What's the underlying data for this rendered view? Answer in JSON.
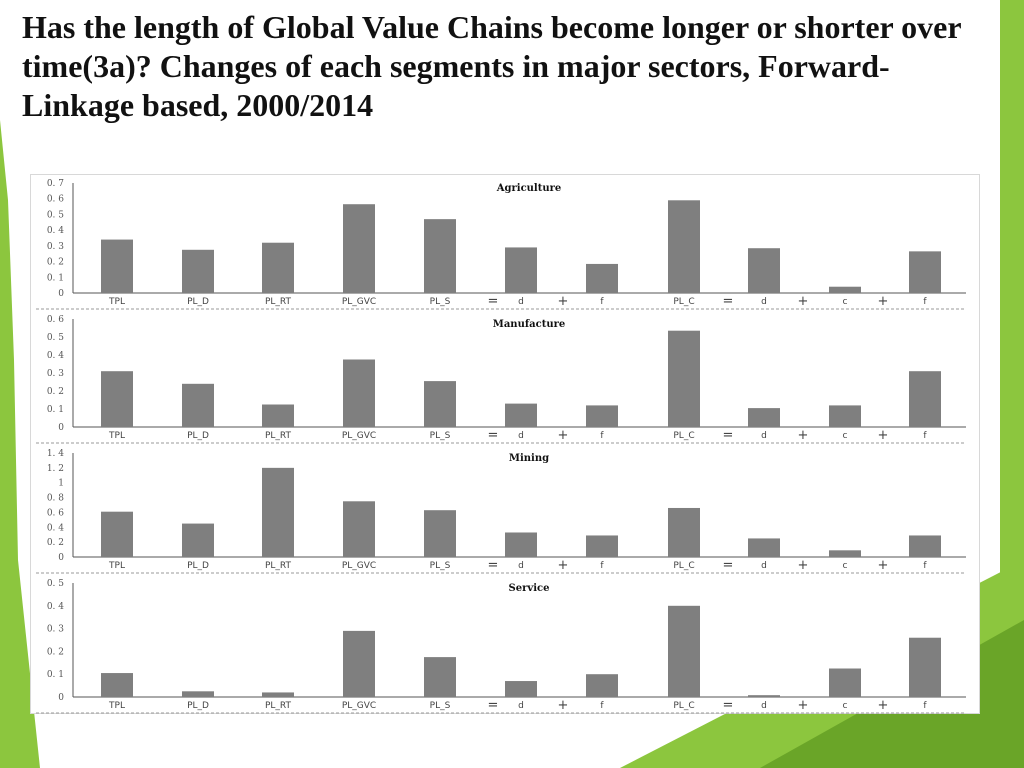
{
  "slide": {
    "title": "Has the length of Global Value Chains become longer or shorter over time(3a)? Changes of  each segments in major sectors, Forward-Linkage based, 2000/2014"
  },
  "colors": {
    "bar": "#7f7f7f",
    "accent_green": "#8cc63e",
    "accent_green_dark": "#6aa528"
  },
  "chart_data": [
    {
      "type": "bar",
      "title": "Agriculture",
      "categories": [
        "TPL",
        "PL_D",
        "PL_RT",
        "PL_GVC",
        "PL_S",
        "d",
        "f",
        "PL_C",
        "d",
        "c",
        "f"
      ],
      "operators": [
        "=",
        "+",
        "=",
        "+",
        "+"
      ],
      "values": [
        0.34,
        0.275,
        0.32,
        0.565,
        0.47,
        0.29,
        0.185,
        0.59,
        0.285,
        0.04,
        0.265
      ],
      "ylim": [
        0,
        0.7
      ],
      "yticks": [
        "0",
        "0. 1",
        "0. 2",
        "0. 3",
        "0. 4",
        "0. 5",
        "0. 6",
        "0. 7"
      ],
      "xlabel": "",
      "ylabel": ""
    },
    {
      "type": "bar",
      "title": "Manufacture",
      "categories": [
        "TPL",
        "PL_D",
        "PL_RT",
        "PL_GVC",
        "PL_S",
        "d",
        "f",
        "PL_C",
        "d",
        "c",
        "f"
      ],
      "operators": [
        "=",
        "+",
        "=",
        "+",
        "+"
      ],
      "values": [
        0.31,
        0.24,
        0.125,
        0.375,
        0.255,
        0.13,
        0.12,
        0.535,
        0.105,
        0.12,
        0.31
      ],
      "ylim": [
        0,
        0.6
      ],
      "yticks": [
        "0",
        "0. 1",
        "0. 2",
        "0. 3",
        "0. 4",
        "0. 5",
        "0. 6"
      ],
      "xlabel": "",
      "ylabel": ""
    },
    {
      "type": "bar",
      "title": "Mining",
      "categories": [
        "TPL",
        "PL_D",
        "PL_RT",
        "PL_GVC",
        "PL_S",
        "d",
        "f",
        "PL_C",
        "d",
        "c",
        "f"
      ],
      "operators": [
        "=",
        "+",
        "=",
        "+",
        "+"
      ],
      "values": [
        0.61,
        0.45,
        1.2,
        0.75,
        0.63,
        0.33,
        0.29,
        0.66,
        0.25,
        0.09,
        0.29
      ],
      "ylim": [
        0,
        1.4
      ],
      "yticks": [
        "0",
        "0. 2",
        "0. 4",
        "0. 6",
        "0. 8",
        "1",
        "1. 2",
        "1. 4"
      ],
      "xlabel": "",
      "ylabel": ""
    },
    {
      "type": "bar",
      "title": "Service",
      "categories": [
        "TPL",
        "PL_D",
        "PL_RT",
        "PL_GVC",
        "PL_S",
        "d",
        "f",
        "PL_C",
        "d",
        "c",
        "f"
      ],
      "operators": [
        "=",
        "+",
        "=",
        "+",
        "+"
      ],
      "values": [
        0.105,
        0.025,
        0.02,
        0.29,
        0.175,
        0.07,
        0.1,
        0.4,
        0.008,
        0.125,
        0.26
      ],
      "ylim": [
        0,
        0.5
      ],
      "yticks": [
        "0",
        "0. 1",
        "0. 2",
        "0. 3",
        "0. 4",
        "0. 5"
      ],
      "xlabel": "",
      "ylabel": ""
    }
  ]
}
